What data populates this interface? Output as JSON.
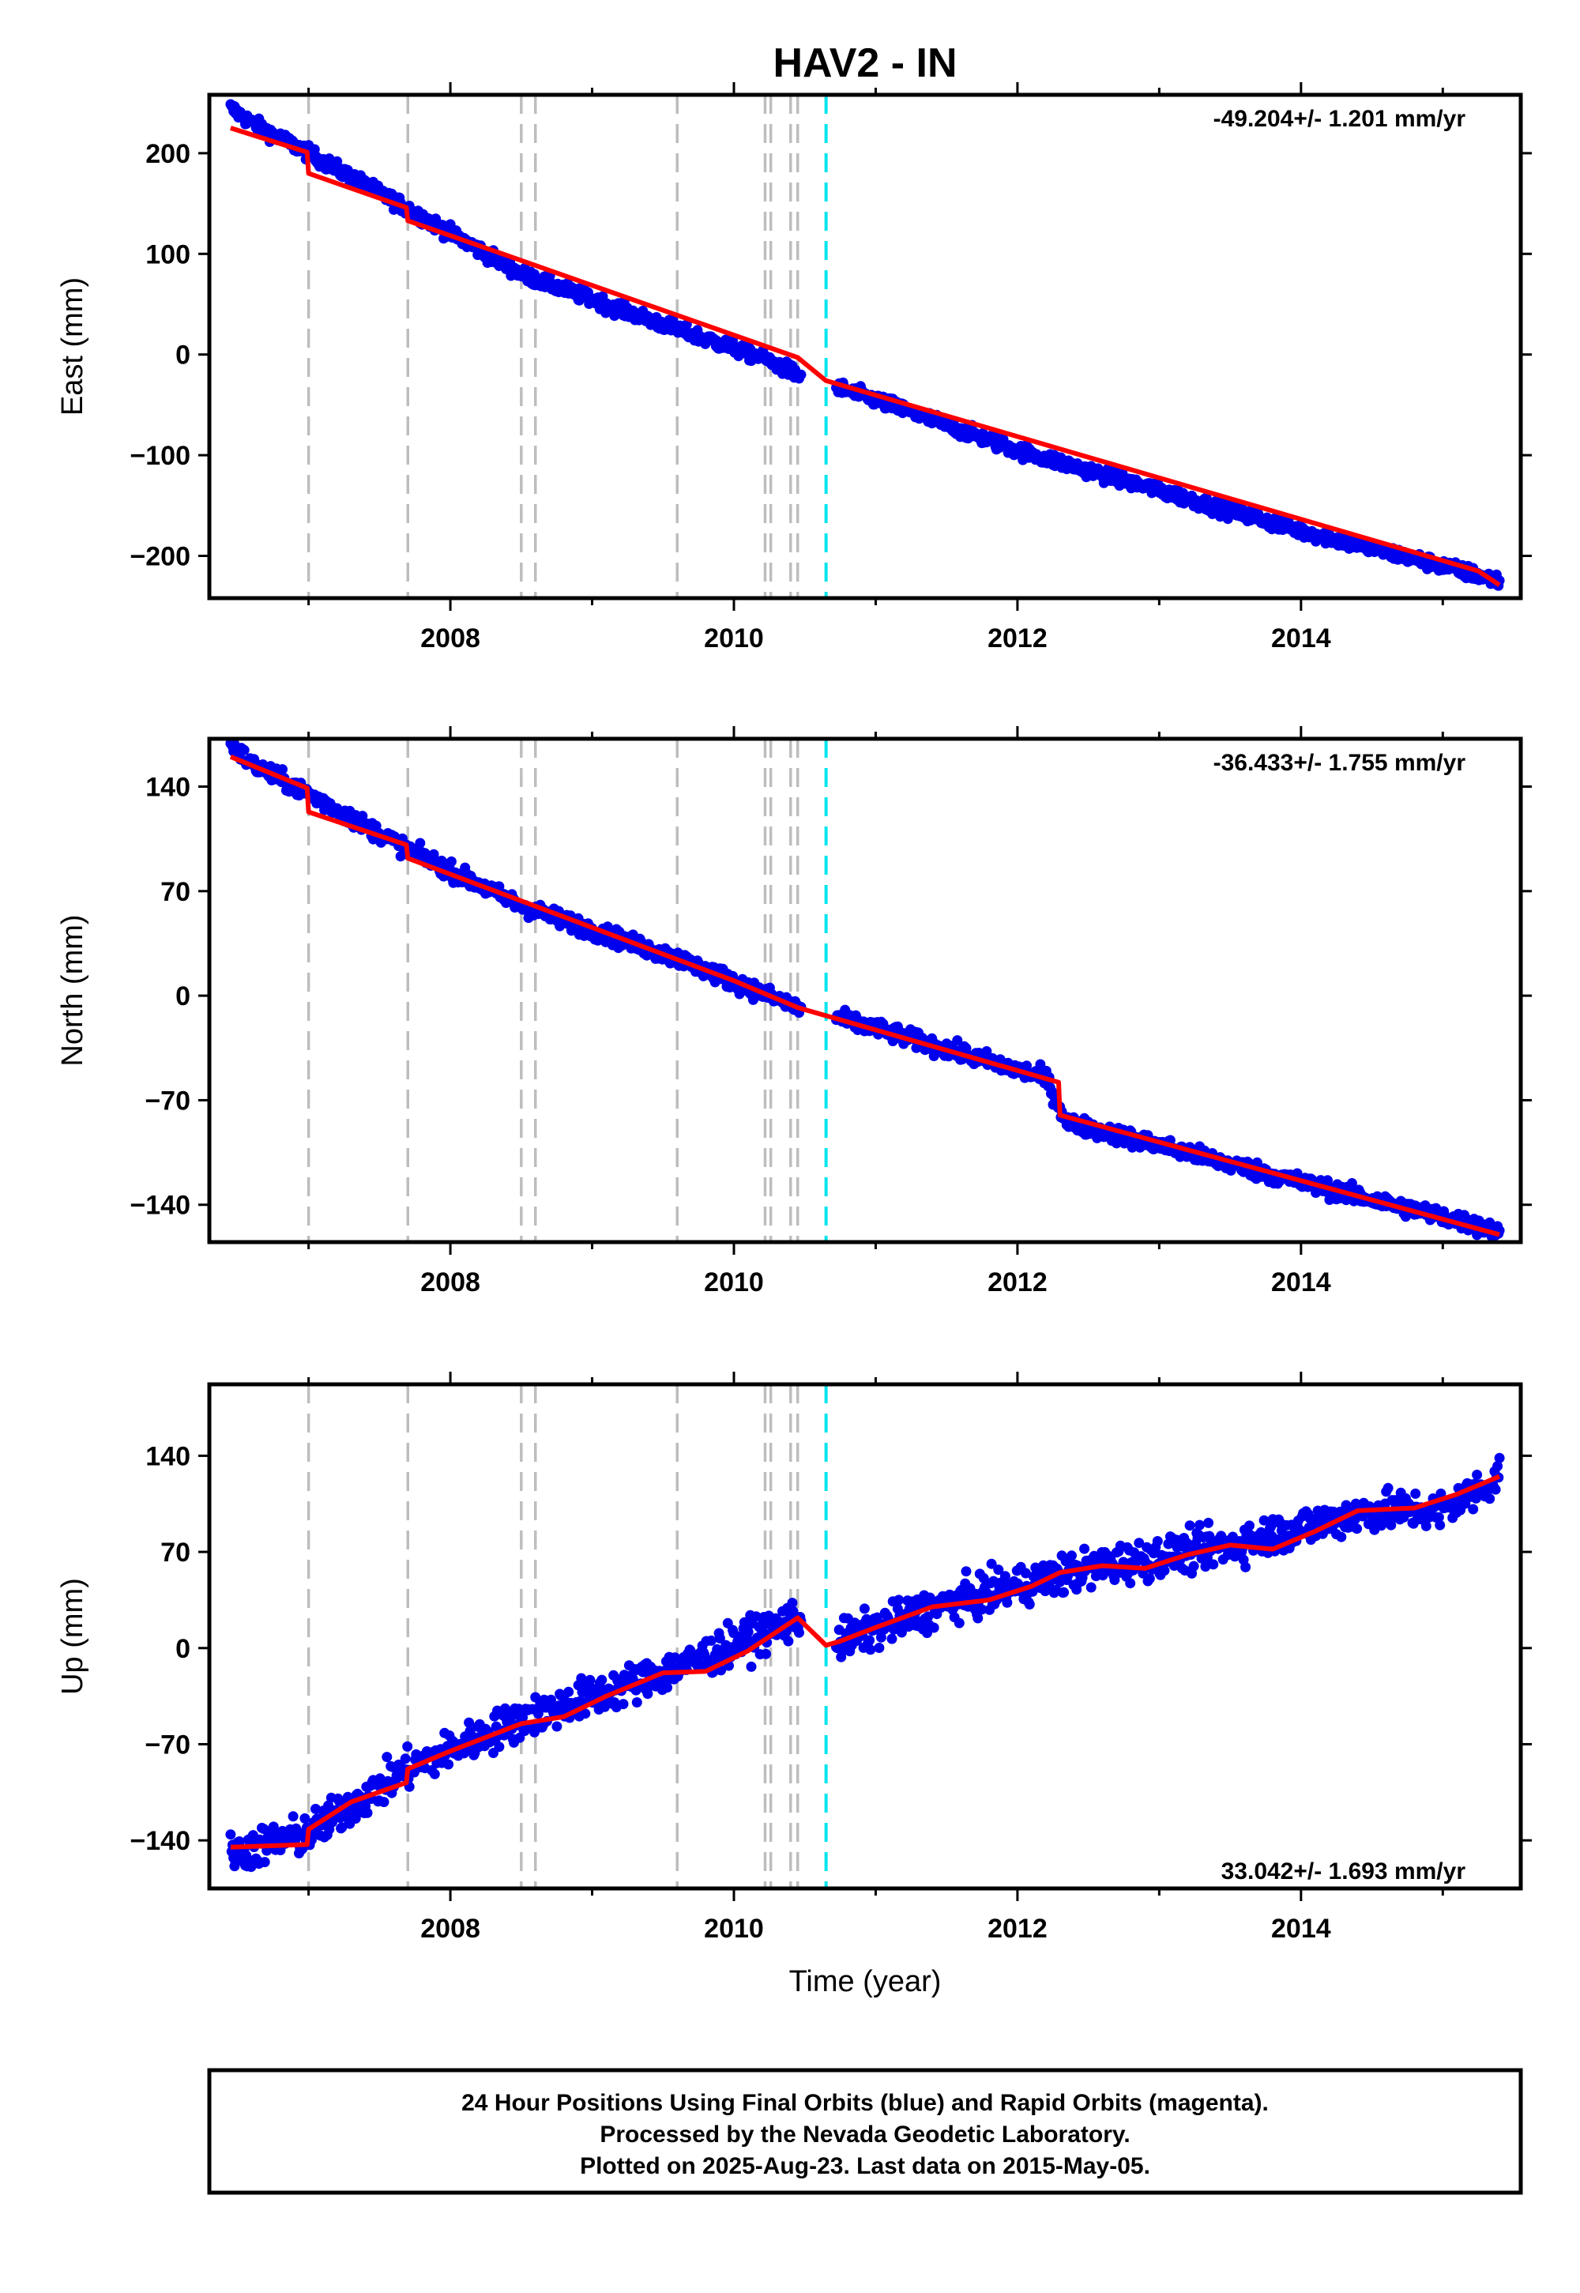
{
  "title": "HAV2 - IN",
  "x_axis_label": "Time (year)",
  "colors": {
    "data_points": "#0000ee",
    "model_line": "#ff0000",
    "event_line": "#bdbdbd",
    "highlight_event_line": "#00e5ee",
    "frame": "#000000"
  },
  "chart_data": [
    {
      "type": "scatter",
      "panel": "east",
      "ylabel": "East (mm)",
      "rate_label": "-49.204+/- 1.201 mm/yr",
      "xlim": [
        2006.3,
        2015.55
      ],
      "ylim": [
        -242,
        258
      ],
      "yticks": [
        -200,
        -100,
        0,
        100,
        200
      ],
      "ytick_labels": [
        "−200",
        "−100",
        "0",
        "100",
        "200"
      ],
      "xticks": [
        2008,
        2010,
        2012,
        2014
      ],
      "xtick_labels": [
        "2008",
        "2010",
        "2012",
        "2014"
      ],
      "event_lines": [
        2007.0,
        2007.7,
        2008.5,
        2008.6,
        2009.6,
        2010.22,
        2010.26,
        2010.4,
        2010.45
      ],
      "highlight_event_lines": [
        2010.65
      ],
      "model": {
        "x": [
          2006.45,
          2006.99,
          2007.0,
          2007.69,
          2007.7,
          2010.45,
          2010.65,
          2015.25,
          2015.4
        ],
        "y": [
          225,
          201,
          180,
          146,
          133,
          -3,
          -26,
          -215,
          -229
        ]
      },
      "observations": {
        "x": [
          2006.45,
          2006.6,
          2007.0,
          2007.7,
          2008.5,
          2009.6,
          2010.2,
          2010.45,
          2011.0,
          2012.0,
          2013.0,
          2014.0,
          2015.0,
          2015.4
        ],
        "y": [
          245,
          230,
          200,
          145,
          80,
          25,
          -3,
          -20,
          -45,
          -95,
          -135,
          -175,
          -210,
          -225
        ]
      },
      "noise": 5
    },
    {
      "type": "scatter",
      "panel": "north",
      "ylabel": "North (mm)",
      "rate_label": "-36.433+/- 1.755 mm/yr",
      "xlim": [
        2006.3,
        2015.55
      ],
      "ylim": [
        -165,
        172
      ],
      "yticks": [
        -140,
        -70,
        0,
        70,
        140
      ],
      "ytick_labels": [
        "−140",
        "−70",
        "0",
        "70",
        "140"
      ],
      "xticks": [
        2008,
        2010,
        2012,
        2014
      ],
      "xtick_labels": [
        "2008",
        "2010",
        "2012",
        "2014"
      ],
      "event_lines": [
        2007.0,
        2007.7,
        2008.5,
        2008.6,
        2009.6,
        2010.22,
        2010.26,
        2010.4,
        2010.45
      ],
      "highlight_event_lines": [
        2010.65
      ],
      "model": {
        "x": [
          2006.45,
          2006.99,
          2007.0,
          2007.69,
          2007.7,
          2010.0,
          2010.45,
          2012.29,
          2012.3,
          2015.4
        ],
        "y": [
          160,
          139,
          123,
          101,
          92,
          10,
          -8,
          -58,
          -80,
          -160
        ]
      },
      "observations": {
        "x": [
          2006.45,
          2006.6,
          2007.0,
          2007.7,
          2008.5,
          2009.6,
          2010.45,
          2011.0,
          2012.2,
          2012.35,
          2013.0,
          2014.0,
          2015.0,
          2015.4
        ],
        "y": [
          168,
          155,
          135,
          98,
          60,
          25,
          -8,
          -22,
          -55,
          -85,
          -100,
          -125,
          -148,
          -158
        ]
      },
      "noise": 4
    },
    {
      "type": "scatter",
      "panel": "up",
      "ylabel": "Up (mm)",
      "rate_label": "33.042+/- 1.693 mm/yr",
      "xlim": [
        2006.3,
        2015.55
      ],
      "ylim": [
        -175,
        192
      ],
      "yticks": [
        -140,
        -70,
        0,
        70,
        140
      ],
      "ytick_labels": [
        "−140",
        "−70",
        "0",
        "70",
        "140"
      ],
      "xticks": [
        2008,
        2010,
        2012,
        2014
      ],
      "xtick_labels": [
        "2008",
        "2010",
        "2012",
        "2014"
      ],
      "event_lines": [
        2007.0,
        2007.7,
        2008.5,
        2008.6,
        2009.6,
        2010.22,
        2010.26,
        2010.4,
        2010.45
      ],
      "highlight_event_lines": [
        2010.65
      ],
      "model": {
        "x": [
          2006.45,
          2006.99,
          2007.0,
          2007.3,
          2007.69,
          2007.7,
          2008.0,
          2008.5,
          2008.8,
          2009.1,
          2009.5,
          2009.8,
          2010.1,
          2010.45,
          2010.65,
          2010.75,
          2011.0,
          2011.4,
          2011.8,
          2012.1,
          2012.3,
          2012.6,
          2012.9,
          2013.2,
          2013.5,
          2013.8,
          2014.1,
          2014.4,
          2014.8,
          2015.1,
          2015.4
        ],
        "y": [
          -145,
          -143,
          -132,
          -112,
          -98,
          -88,
          -75,
          -55,
          -50,
          -35,
          -18,
          -17,
          -2,
          22,
          2,
          5,
          15,
          30,
          35,
          45,
          55,
          60,
          58,
          68,
          75,
          72,
          85,
          100,
          102,
          112,
          125
        ]
      },
      "observations": {
        "x": [
          2006.45,
          2007.0,
          2007.7,
          2008.5,
          2009.6,
          2010.45,
          2010.75,
          2011.5,
          2012.5,
          2013.5,
          2014.5,
          2015.0,
          2015.4
        ],
        "y": [
          -150,
          -135,
          -88,
          -52,
          -15,
          22,
          5,
          32,
          58,
          75,
          100,
          100,
          125
        ]
      },
      "noise": 10
    }
  ],
  "footer": {
    "lines": [
      "24 Hour Positions Using Final Orbits (blue) and Rapid Orbits (magenta).",
      "Processed by the Nevada Geodetic Laboratory.",
      "Plotted on 2025-Aug-23. Last data on 2015-May-05."
    ]
  }
}
